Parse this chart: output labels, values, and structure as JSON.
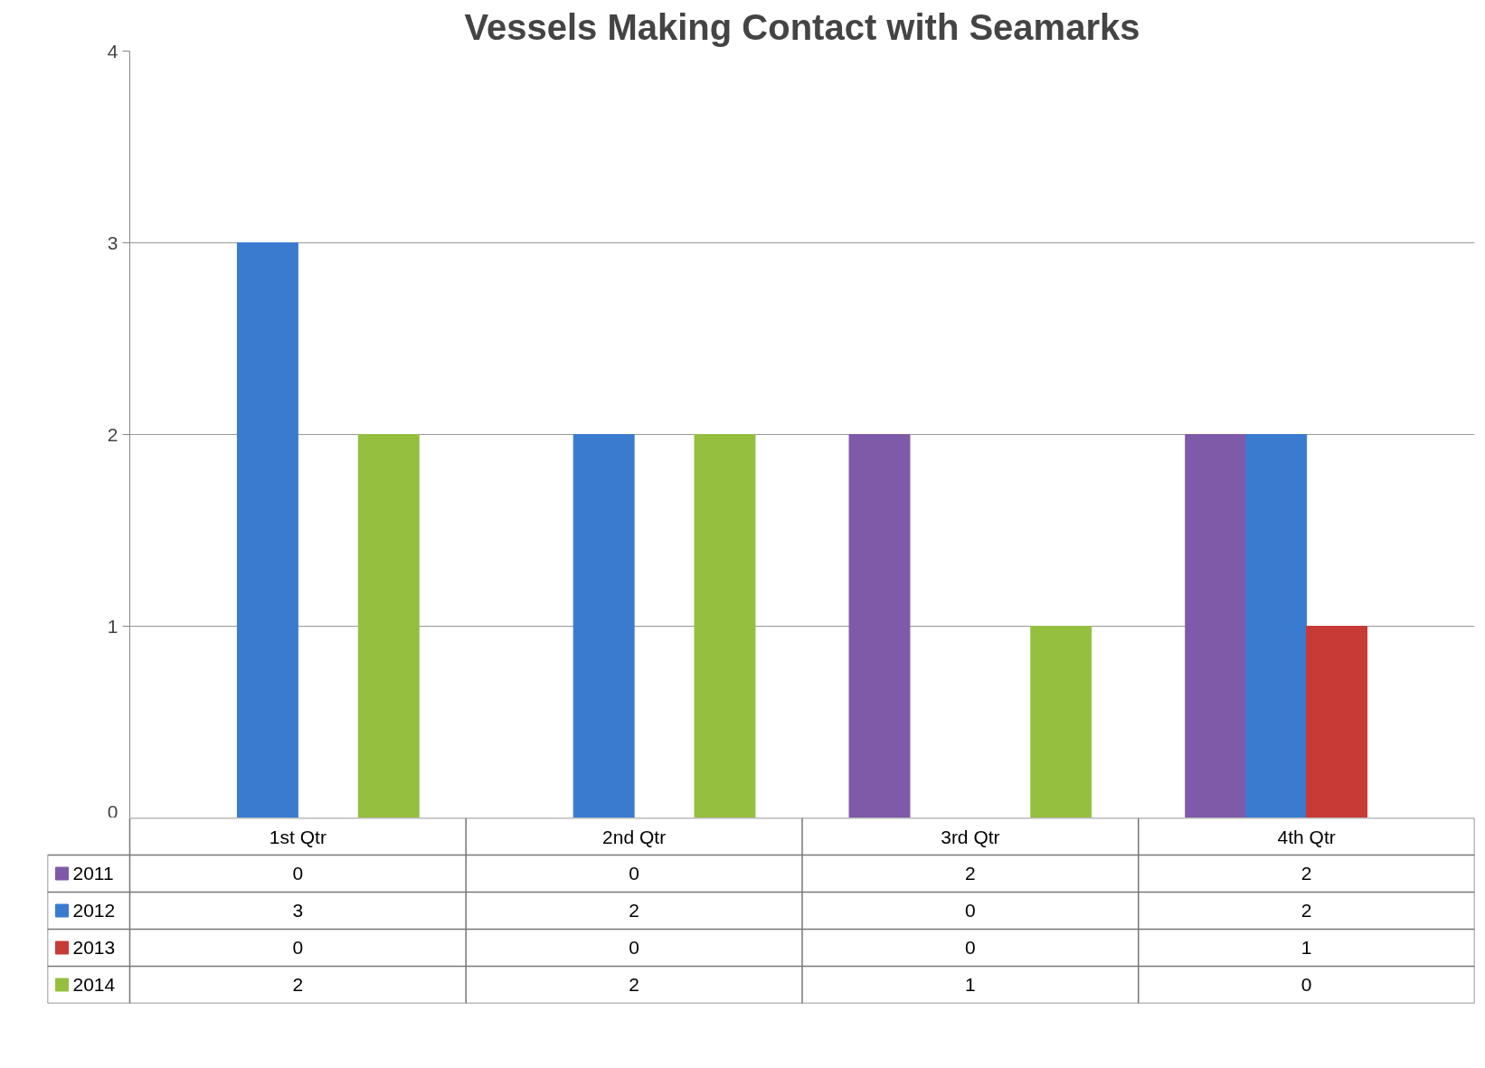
{
  "chart_data": {
    "type": "bar",
    "title": "Vessels Making Contact with Seamarks",
    "categories": [
      "1st Qtr",
      "2nd Qtr",
      "3rd Qtr",
      "4th Qtr"
    ],
    "series": [
      {
        "name": "2011",
        "color": "#7f5aa8",
        "values": [
          0,
          0,
          2,
          2
        ]
      },
      {
        "name": "2012",
        "color": "#3a7bd0",
        "values": [
          3,
          2,
          0,
          2
        ]
      },
      {
        "name": "2013",
        "color": "#c83a36",
        "values": [
          0,
          0,
          0,
          1
        ]
      },
      {
        "name": "2014",
        "color": "#95bf3f",
        "values": [
          2,
          2,
          1,
          0
        ]
      }
    ],
    "ylim": [
      0,
      4
    ],
    "yticks": [
      0,
      1,
      2,
      3,
      4
    ],
    "grid": "y",
    "legend": "bottom",
    "data_labels": true
  }
}
